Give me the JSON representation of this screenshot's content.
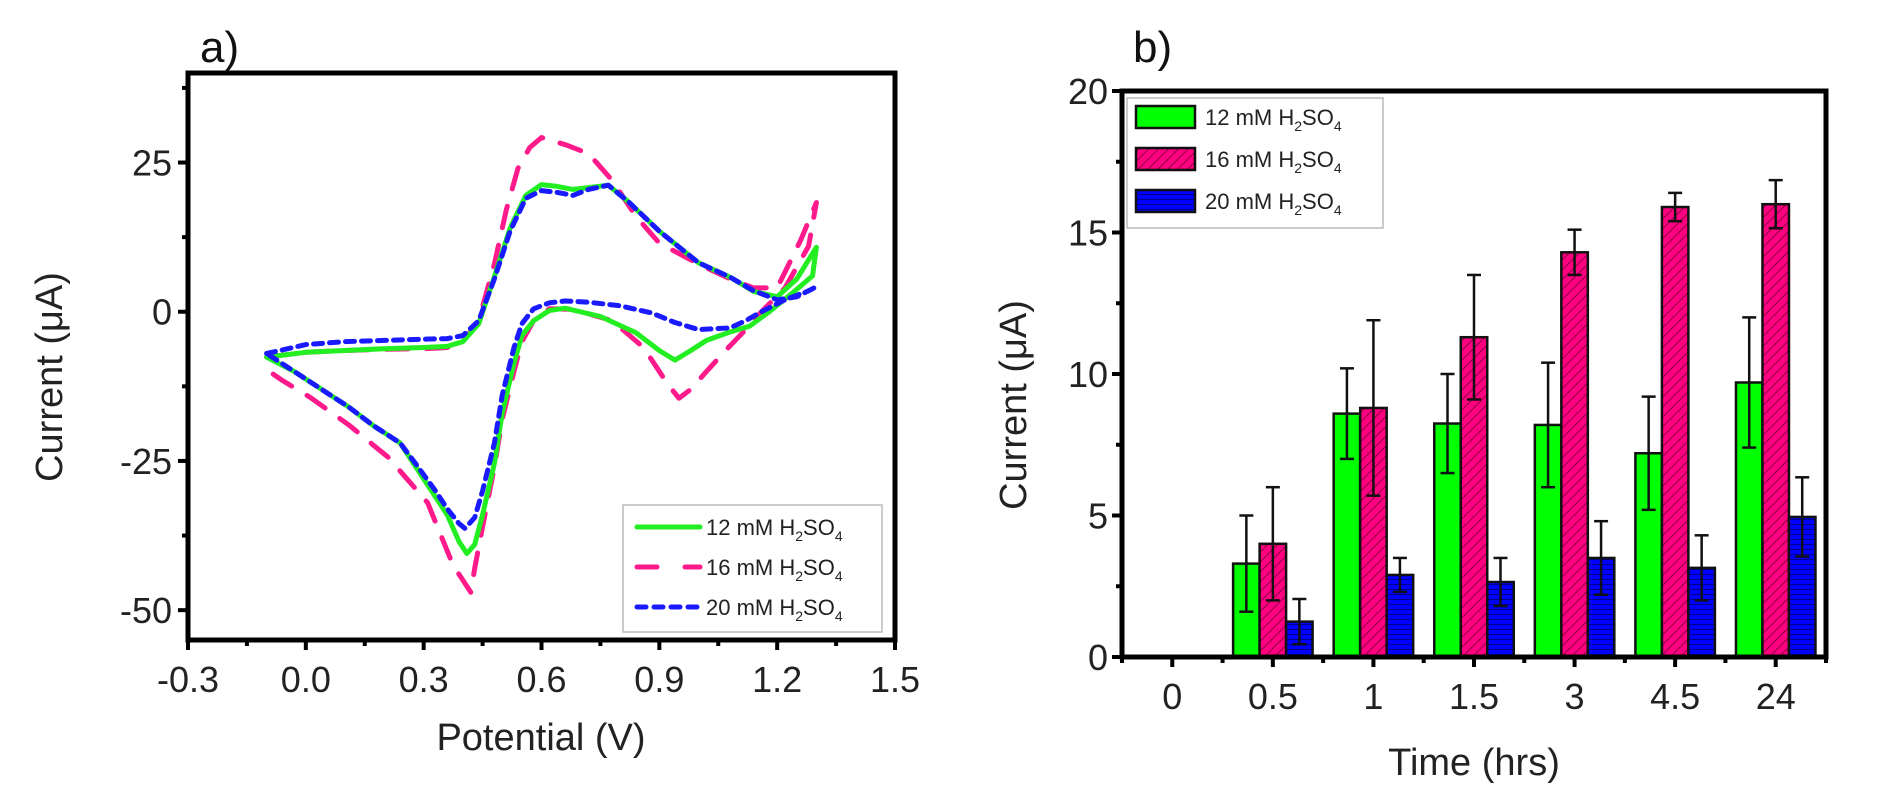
{
  "figure": {
    "panels": [
      "a)",
      "b)"
    ]
  },
  "chart_data": [
    {
      "id": "a",
      "type": "line",
      "panel_label": "a)",
      "title": "",
      "xlabel": "Potential (V)",
      "ylabel": "Current (μA)",
      "xlim": [
        -0.3,
        1.5
      ],
      "ylim": [
        -55,
        40
      ],
      "xticks": [
        -0.3,
        0.0,
        0.3,
        0.6,
        0.9,
        1.2,
        1.5
      ],
      "xtick_labels": [
        "-0.3",
        "0.0",
        "0.3",
        "0.6",
        "0.9",
        "1.2",
        "1.5"
      ],
      "yticks": [
        -50,
        -25,
        0,
        25
      ],
      "ytick_labels": [
        "-50",
        "-25",
        "0",
        "25"
      ],
      "y_minor_ticks": [
        -37.5,
        -12.5,
        12.5,
        37.5
      ],
      "x_minor_ticks": [
        -0.15,
        0.15,
        0.45,
        0.75,
        1.05,
        1.35
      ],
      "grid": false,
      "legend_position": "bottom-right",
      "series": [
        {
          "name": "12 mM H2SO4",
          "label_parts": [
            "12 mM H",
            "2",
            "SO",
            "4"
          ],
          "color": "#22ee22",
          "style": "solid",
          "x": [
            -0.1,
            0.0,
            0.1,
            0.2,
            0.3,
            0.36,
            0.4,
            0.44,
            0.48,
            0.52,
            0.56,
            0.6,
            0.64,
            0.68,
            0.72,
            0.77,
            0.82,
            0.9,
            1.0,
            1.08,
            1.14,
            1.2,
            1.25,
            1.3,
            1.29,
            1.24,
            1.18,
            1.13,
            1.08,
            1.02,
            0.98,
            0.94,
            0.9,
            0.84,
            0.75,
            0.66,
            0.62,
            0.58,
            0.55,
            0.53,
            0.5,
            0.48,
            0.45,
            0.43,
            0.41,
            0.39,
            0.36,
            0.33,
            0.28,
            0.24,
            0.17,
            0.11,
            0.04,
            -0.03,
            -0.1
          ],
          "y": [
            -7.6,
            -6.8,
            -6.5,
            -6.2,
            -6.0,
            -5.8,
            -5.0,
            -2.0,
            5.9,
            14.0,
            19.5,
            21.3,
            21.0,
            20.5,
            20.8,
            21.2,
            18.5,
            13.5,
            8.2,
            5.8,
            3.4,
            2.5,
            5.5,
            10.8,
            6.0,
            3.2,
            0.0,
            -2.4,
            -3.4,
            -4.8,
            -6.5,
            -8.1,
            -6.5,
            -3.5,
            -0.8,
            0.6,
            0.2,
            -1.5,
            -4.0,
            -8.6,
            -17.0,
            -25.4,
            -34.0,
            -39.0,
            -40.5,
            -38.5,
            -34.0,
            -31.0,
            -26.0,
            -22.0,
            -19.0,
            -16.0,
            -13.0,
            -10.0,
            -7.6
          ]
        },
        {
          "name": "16 mM H2SO4",
          "label_parts": [
            "16 mM H",
            "2",
            "SO",
            "4"
          ],
          "color": "#ff1a8c",
          "style": "dashed",
          "x": [
            -0.1,
            0.0,
            0.1,
            0.2,
            0.3,
            0.36,
            0.4,
            0.44,
            0.48,
            0.51,
            0.54,
            0.57,
            0.6,
            0.66,
            0.72,
            0.78,
            0.84,
            0.9,
            1.0,
            1.08,
            1.14,
            1.2,
            1.26,
            1.3,
            1.28,
            1.22,
            1.16,
            1.12,
            1.07,
            1.02,
            0.98,
            0.95,
            0.92,
            0.86,
            0.78,
            0.68,
            0.62,
            0.58,
            0.55,
            0.53,
            0.5,
            0.48,
            0.45,
            0.43,
            0.42,
            0.41,
            0.39,
            0.37,
            0.31,
            0.21,
            0.11,
            0.01,
            -0.06,
            -0.1
          ],
          "y": [
            -7.6,
            -6.8,
            -6.5,
            -6.3,
            -6.2,
            -6.0,
            -5.0,
            -1.5,
            8.0,
            17.0,
            24.0,
            27.5,
            29.2,
            28.0,
            26.5,
            22.0,
            16.0,
            11.5,
            8.0,
            5.5,
            4.0,
            4.0,
            12.0,
            18.3,
            11.0,
            4.0,
            0.0,
            -3.0,
            -6.4,
            -10.0,
            -13.0,
            -14.5,
            -12.0,
            -6.0,
            -1.5,
            0.4,
            0.5,
            -1.5,
            -5.0,
            -10.0,
            -18.0,
            -26.0,
            -36.0,
            -43.0,
            -47.0,
            -46.0,
            -44.0,
            -41.7,
            -32.0,
            -24.4,
            -19.0,
            -14.3,
            -11.5,
            -9.7
          ]
        },
        {
          "name": "20 mM H2SO4",
          "label_parts": [
            "20 mM H",
            "2",
            "SO",
            "4"
          ],
          "color": "#1a1aff",
          "style": "dotted",
          "x": [
            -0.1,
            0.0,
            0.1,
            0.2,
            0.3,
            0.36,
            0.4,
            0.44,
            0.48,
            0.52,
            0.56,
            0.6,
            0.64,
            0.68,
            0.72,
            0.77,
            0.82,
            0.9,
            1.0,
            1.08,
            1.14,
            1.2,
            1.25,
            1.3,
            1.28,
            1.22,
            1.16,
            1.12,
            1.08,
            1.0,
            0.94,
            0.88,
            0.8,
            0.72,
            0.66,
            0.62,
            0.58,
            0.55,
            0.53,
            0.5,
            0.48,
            0.45,
            0.43,
            0.405,
            0.39,
            0.36,
            0.33,
            0.28,
            0.24,
            0.17,
            0.11,
            0.04,
            -0.03,
            -0.1
          ],
          "y": [
            -7.0,
            -5.5,
            -5.0,
            -4.8,
            -4.6,
            -4.5,
            -4.0,
            -1.5,
            5.5,
            13.5,
            19.0,
            20.3,
            20.0,
            19.5,
            20.5,
            21.2,
            18.5,
            13.5,
            8.2,
            5.8,
            3.5,
            2.0,
            2.5,
            4.2,
            3.5,
            2.0,
            0.0,
            -1.5,
            -2.7,
            -3.0,
            -1.8,
            -0.2,
            1.0,
            1.6,
            1.8,
            1.5,
            0.5,
            -2.0,
            -6.0,
            -14.0,
            -22.0,
            -30.0,
            -34.5,
            -36.3,
            -35.5,
            -33.0,
            -30.0,
            -25.5,
            -22.0,
            -19.0,
            -16.0,
            -13.0,
            -10.0,
            -7.0
          ]
        }
      ]
    },
    {
      "id": "b",
      "type": "bar",
      "panel_label": "b)",
      "title": "",
      "xlabel": "Time (hrs)",
      "ylabel": "Current (μA)",
      "categories": [
        "0",
        "0.5",
        "1",
        "1.5",
        "3",
        "4.5",
        "24"
      ],
      "ylim": [
        0,
        20
      ],
      "yticks": [
        0,
        5,
        10,
        15,
        20
      ],
      "ytick_labels": [
        "0",
        "5",
        "10",
        "15",
        "20"
      ],
      "y_minor_ticks": [
        2.5,
        7.5,
        12.5,
        17.5
      ],
      "grid": false,
      "legend_position": "top-left",
      "series": [
        {
          "name": "12 mM H2SO4",
          "label_parts": [
            "12 mM H",
            "2",
            "SO",
            "4"
          ],
          "color": "#00ff00",
          "pattern": "solid",
          "values": [
            0,
            3.3,
            8.6,
            8.25,
            8.2,
            7.2,
            9.7
          ],
          "errors": [
            0,
            1.7,
            1.6,
            1.75,
            2.2,
            2.0,
            2.3
          ]
        },
        {
          "name": "16 mM H2SO4",
          "label_parts": [
            "16 mM H",
            "2",
            "SO",
            "4"
          ],
          "color": "#ff0080",
          "pattern": "diagonal-hatch",
          "values": [
            0,
            4.0,
            8.8,
            11.3,
            14.3,
            15.9,
            16.0
          ],
          "errors": [
            0,
            2.0,
            3.1,
            2.2,
            0.8,
            0.5,
            0.85
          ]
        },
        {
          "name": "20 mM H2SO4",
          "label_parts": [
            "20 mM H",
            "2",
            "SO",
            "4"
          ],
          "color": "#0000ff",
          "pattern": "horizontal-hatch",
          "values": [
            0,
            1.25,
            2.9,
            2.65,
            3.5,
            3.15,
            4.95
          ],
          "errors": [
            0,
            0.8,
            0.6,
            0.85,
            1.3,
            1.15,
            1.4
          ]
        }
      ]
    }
  ]
}
